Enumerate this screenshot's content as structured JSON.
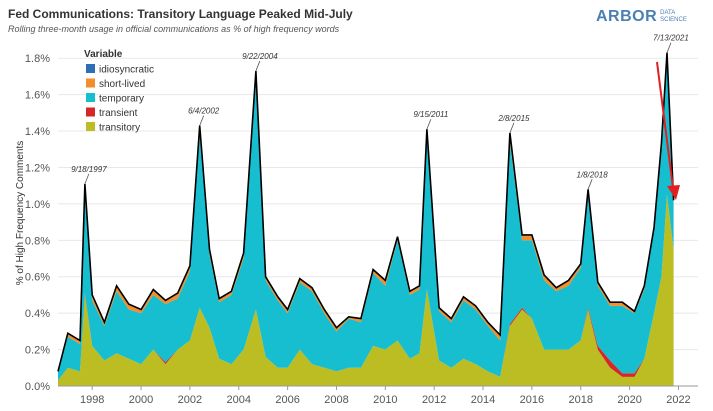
{
  "header": {
    "title": "Fed Communications: Transitory Language Peaked Mid-July",
    "subtitle": "Rolling three-month usage in official communications as % of high frequency words"
  },
  "logo": {
    "main": "ARBOR",
    "sub": "DATA SCIENCE"
  },
  "colors": {
    "idiosyncratic": "#2e6eb4",
    "short-lived": "#f28e2b",
    "temporary": "#17becf",
    "transient": "#d62728",
    "transitory": "#bcbd22",
    "total_line": "#000000",
    "arrow": "#e02020",
    "grid": "#e8e8e8"
  },
  "chart_data": {
    "type": "area",
    "stacked": true,
    "xlim": [
      1996.6,
      2022.8
    ],
    "ylim": [
      0,
      1.9
    ],
    "ylabel": "% of High Frequency Comments",
    "xticks": [
      1998,
      2000,
      2002,
      2004,
      2006,
      2008,
      2010,
      2012,
      2014,
      2016,
      2018,
      2020,
      2022
    ],
    "yticks": [
      0.0,
      0.2,
      0.4,
      0.6,
      0.8,
      1.0,
      1.2,
      1.4,
      1.6,
      1.8
    ],
    "ytick_labels": [
      "0.0%",
      "0.2%",
      "0.4%",
      "0.6%",
      "0.8%",
      "1.0%",
      "1.2%",
      "1.4%",
      "1.6%",
      "1.8%"
    ],
    "grid": "horizontal",
    "legend_title": "Variable",
    "legend_position": "top-left",
    "series_names": [
      "idiosyncratic",
      "short-lived",
      "temporary",
      "transient",
      "transitory"
    ],
    "x": [
      1996.6,
      1997.0,
      1997.5,
      1997.7,
      1998.0,
      1998.5,
      1999.0,
      1999.5,
      2000.0,
      2000.5,
      2001.0,
      2001.5,
      2002.0,
      2002.4,
      2002.8,
      2003.2,
      2003.7,
      2004.2,
      2004.7,
      2005.1,
      2005.6,
      2006.0,
      2006.5,
      2007.0,
      2007.5,
      2008.0,
      2008.5,
      2009.0,
      2009.5,
      2010.0,
      2010.5,
      2011.0,
      2011.4,
      2011.7,
      2012.2,
      2012.7,
      2013.2,
      2013.7,
      2014.2,
      2014.7,
      2015.1,
      2015.6,
      2016.0,
      2016.5,
      2017.0,
      2017.5,
      2018.0,
      2018.3,
      2018.7,
      2019.2,
      2019.7,
      2020.2,
      2020.6,
      2021.0,
      2021.3,
      2021.53,
      2021.8
    ],
    "series": [
      {
        "name": "idiosyncratic",
        "values": [
          0,
          0,
          0,
          0.01,
          0,
          0,
          0,
          0,
          0,
          0,
          0,
          0,
          0,
          0.01,
          0,
          0,
          0,
          0,
          0.01,
          0,
          0,
          0,
          0,
          0,
          0,
          0,
          0,
          0,
          0,
          0,
          0,
          0,
          0,
          0,
          0,
          0,
          0,
          0,
          0,
          0,
          0.01,
          0,
          0,
          0,
          0,
          0,
          0,
          0,
          0,
          0,
          0,
          0,
          0,
          0,
          0,
          0,
          0
        ]
      },
      {
        "name": "short-lived",
        "values": [
          0,
          0.02,
          0.02,
          0.04,
          0.03,
          0.02,
          0.03,
          0.03,
          0.02,
          0.03,
          0.02,
          0.03,
          0.03,
          0.04,
          0.03,
          0.02,
          0.02,
          0.03,
          0.04,
          0.02,
          0.02,
          0.02,
          0.02,
          0.02,
          0.02,
          0.02,
          0.01,
          0.02,
          0.02,
          0.03,
          0.02,
          0.02,
          0.02,
          0.03,
          0.02,
          0.02,
          0.02,
          0.02,
          0.02,
          0.03,
          0.04,
          0.03,
          0.03,
          0.03,
          0.02,
          0.03,
          0.02,
          0.03,
          0.02,
          0.02,
          0.02,
          0.01,
          0.02,
          0.02,
          0.03,
          0.03,
          0.02
        ]
      },
      {
        "name": "temporary",
        "values": [
          0.05,
          0.17,
          0.15,
          0.55,
          0.25,
          0.19,
          0.34,
          0.27,
          0.28,
          0.3,
          0.32,
          0.28,
          0.38,
          0.95,
          0.4,
          0.31,
          0.38,
          0.5,
          1.26,
          0.42,
          0.37,
          0.3,
          0.37,
          0.4,
          0.3,
          0.22,
          0.27,
          0.25,
          0.4,
          0.35,
          0.55,
          0.35,
          0.35,
          0.85,
          0.27,
          0.25,
          0.32,
          0.3,
          0.25,
          0.2,
          1.0,
          0.37,
          0.43,
          0.38,
          0.32,
          0.35,
          0.4,
          0.62,
          0.33,
          0.3,
          0.37,
          0.33,
          0.38,
          0.45,
          0.7,
          0.75,
          0.25
        ]
      },
      {
        "name": "transient",
        "values": [
          0,
          0,
          0,
          0.01,
          0,
          0,
          0,
          0,
          0,
          0,
          0.01,
          0,
          0,
          0,
          0,
          0,
          0,
          0,
          0,
          0,
          0,
          0,
          0,
          0,
          0,
          0,
          0,
          0,
          0,
          0,
          0,
          0,
          0,
          0,
          0,
          0,
          0,
          0,
          0,
          0,
          0.01,
          0.01,
          0,
          0,
          0,
          0,
          0,
          0.01,
          0.02,
          0.04,
          0.02,
          0.02,
          0,
          0,
          0,
          0,
          0
        ]
      },
      {
        "name": "transitory",
        "values": [
          0.03,
          0.1,
          0.08,
          0.5,
          0.22,
          0.14,
          0.18,
          0.15,
          0.12,
          0.2,
          0.12,
          0.2,
          0.25,
          0.43,
          0.32,
          0.15,
          0.12,
          0.2,
          0.42,
          0.16,
          0.1,
          0.1,
          0.2,
          0.12,
          0.1,
          0.08,
          0.1,
          0.1,
          0.22,
          0.2,
          0.25,
          0.15,
          0.18,
          0.53,
          0.14,
          0.1,
          0.15,
          0.12,
          0.08,
          0.05,
          0.33,
          0.42,
          0.37,
          0.2,
          0.2,
          0.2,
          0.25,
          0.42,
          0.2,
          0.1,
          0.05,
          0.05,
          0.15,
          0.4,
          0.6,
          1.05,
          0.75
        ]
      }
    ],
    "annotations": [
      {
        "x": 1997.7,
        "y": 1.11,
        "label": "9/18/1997"
      },
      {
        "x": 2002.4,
        "y": 1.43,
        "label": "6/4/2002"
      },
      {
        "x": 2004.7,
        "y": 1.73,
        "label": "9/22/2004"
      },
      {
        "x": 2011.7,
        "y": 1.41,
        "label": "9/15/2011"
      },
      {
        "x": 2015.1,
        "y": 1.39,
        "label": "2/8/2015"
      },
      {
        "x": 2018.3,
        "y": 1.08,
        "label": "1/8/2018"
      },
      {
        "x": 2021.53,
        "y": 1.83,
        "label": "7/13/2021"
      }
    ]
  }
}
